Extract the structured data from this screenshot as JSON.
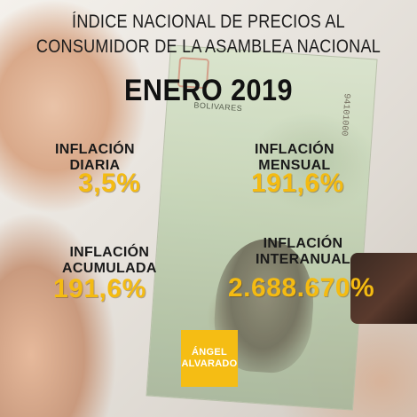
{
  "header": {
    "title_line1": "ÍNDICE NACIONAL DE PRECIOS AL",
    "title_line2": "CONSUMIDOR DE LA ASAMBLEA NACIONAL",
    "period": "ENERO 2019"
  },
  "stats": {
    "daily": {
      "label_line1": "INFLACIÓN",
      "label_line2": "DIARIA",
      "value": "3,5%"
    },
    "monthly": {
      "label_line1": "INFLACIÓN",
      "label_line2": "MENSUAL",
      "value": "191,6%"
    },
    "accumulated": {
      "label_line1": "INFLACIÓN",
      "label_line2": "ACUMULADA",
      "value": "191,6%"
    },
    "interannual": {
      "label_line1": "INFLACIÓN",
      "label_line2": "INTERANUAL",
      "value": "2.688.670%"
    }
  },
  "logo": {
    "line1": "ÁNGEL",
    "line2": "ALVARADO"
  },
  "banknote": {
    "serial": "94101000",
    "currency": "BOLIVARES"
  },
  "colors": {
    "accent": "#f4bb12",
    "text": "#1a1a1a",
    "logo_bg": "#f5bd14"
  }
}
